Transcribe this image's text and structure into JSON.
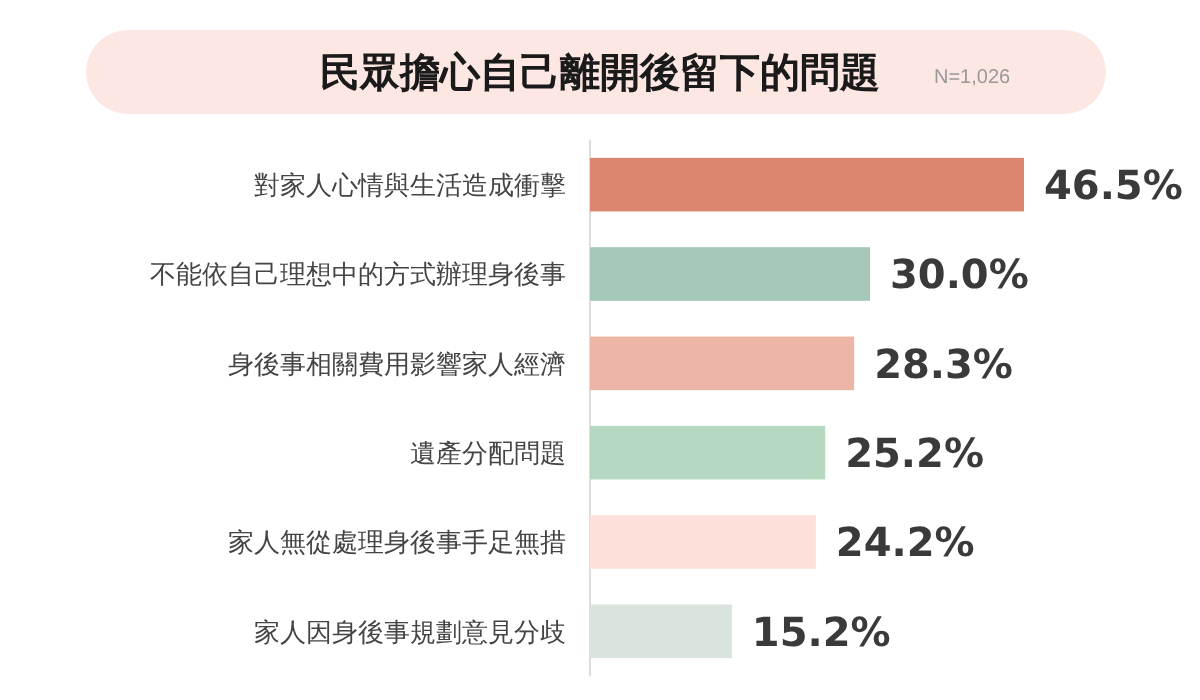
{
  "chart_data": {
    "type": "bar",
    "orientation": "horizontal",
    "title": "民眾擔心自己離開後留下的問題",
    "subtitle": "N=1,026",
    "categories": [
      "對家人心情與生活造成衝擊",
      "不能依自己理想中的方式辦理身後事",
      "身後事相關費用影響家人經濟",
      "遺產分配問題",
      "家人無從處理身後事手足無措",
      "家人因身後事規劃意見分歧"
    ],
    "values": [
      46.5,
      30.0,
      28.3,
      25.2,
      24.2,
      15.2
    ],
    "colors": [
      "#dc8670",
      "#a5c8b8",
      "#ecb5a5",
      "#b5d9c0",
      "#fde0da",
      "#d8e4dc"
    ],
    "value_labels": [
      "46.5%",
      "30.0%",
      "28.3%",
      "25.2%",
      "24.2%",
      "15.2%"
    ]
  }
}
